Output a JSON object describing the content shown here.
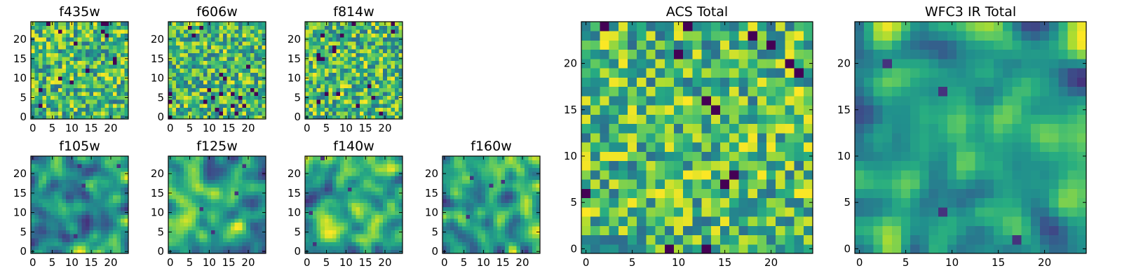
{
  "chart_data": [
    {
      "type": "heatmap",
      "title": "f435w",
      "seed": 11,
      "style": "noise",
      "xlim": [
        0,
        25
      ],
      "ylim": [
        0,
        25
      ],
      "xticks": [
        0,
        5,
        10,
        15,
        20
      ],
      "yticks": [
        0,
        5,
        10,
        15,
        20
      ],
      "colormap": "viridis"
    },
    {
      "type": "heatmap",
      "title": "f606w",
      "seed": 23,
      "style": "noise",
      "xlim": [
        0,
        25
      ],
      "ylim": [
        0,
        25
      ],
      "xticks": [
        0,
        5,
        10,
        15,
        20
      ],
      "yticks": [
        0,
        5,
        10,
        15,
        20
      ],
      "colormap": "viridis"
    },
    {
      "type": "heatmap",
      "title": "f814w",
      "seed": 37,
      "style": "noise",
      "xlim": [
        0,
        25
      ],
      "ylim": [
        0,
        25
      ],
      "xticks": [
        0,
        5,
        10,
        15,
        20
      ],
      "yticks": [
        0,
        5,
        10,
        15,
        20
      ],
      "colormap": "viridis"
    },
    {
      "type": "heatmap",
      "title": "f105w",
      "seed": 41,
      "style": "smooth",
      "xlim": [
        0,
        25
      ],
      "ylim": [
        0,
        25
      ],
      "xticks": [
        0,
        5,
        10,
        15,
        20
      ],
      "yticks": [
        0,
        5,
        10,
        15,
        20
      ],
      "colormap": "viridis"
    },
    {
      "type": "heatmap",
      "title": "f125w",
      "seed": 53,
      "style": "smooth",
      "xlim": [
        0,
        25
      ],
      "ylim": [
        0,
        25
      ],
      "xticks": [
        0,
        5,
        10,
        15,
        20
      ],
      "yticks": [
        0,
        5,
        10,
        15,
        20
      ],
      "colormap": "viridis"
    },
    {
      "type": "heatmap",
      "title": "f140w",
      "seed": 67,
      "style": "smooth",
      "xlim": [
        0,
        25
      ],
      "ylim": [
        0,
        25
      ],
      "xticks": [
        0,
        5,
        10,
        15,
        20
      ],
      "yticks": [
        0,
        5,
        10,
        15,
        20
      ],
      "colormap": "viridis"
    },
    {
      "type": "heatmap",
      "title": "f160w",
      "seed": 79,
      "style": "smooth",
      "xlim": [
        0,
        25
      ],
      "ylim": [
        0,
        25
      ],
      "xticks": [
        0,
        5,
        10,
        15,
        20
      ],
      "yticks": [
        0,
        5,
        10,
        15,
        20
      ],
      "colormap": "viridis"
    },
    {
      "type": "heatmap",
      "title": "ACS Total",
      "seed": 97,
      "style": "noise",
      "xlim": [
        0,
        25
      ],
      "ylim": [
        0,
        25
      ],
      "xticks": [
        0,
        5,
        10,
        15,
        20
      ],
      "yticks": [
        0,
        5,
        10,
        15,
        20
      ],
      "colormap": "viridis"
    },
    {
      "type": "heatmap",
      "title": "WFC3 IR Total",
      "seed": 113,
      "style": "smooth",
      "xlim": [
        0,
        25
      ],
      "ylim": [
        0,
        25
      ],
      "xticks": [
        0,
        5,
        10,
        15,
        20
      ],
      "yticks": [
        0,
        5,
        10,
        15,
        20
      ],
      "colormap": "viridis"
    }
  ],
  "colors": {
    "axes_edge": "#000000",
    "background": "#ffffff"
  }
}
